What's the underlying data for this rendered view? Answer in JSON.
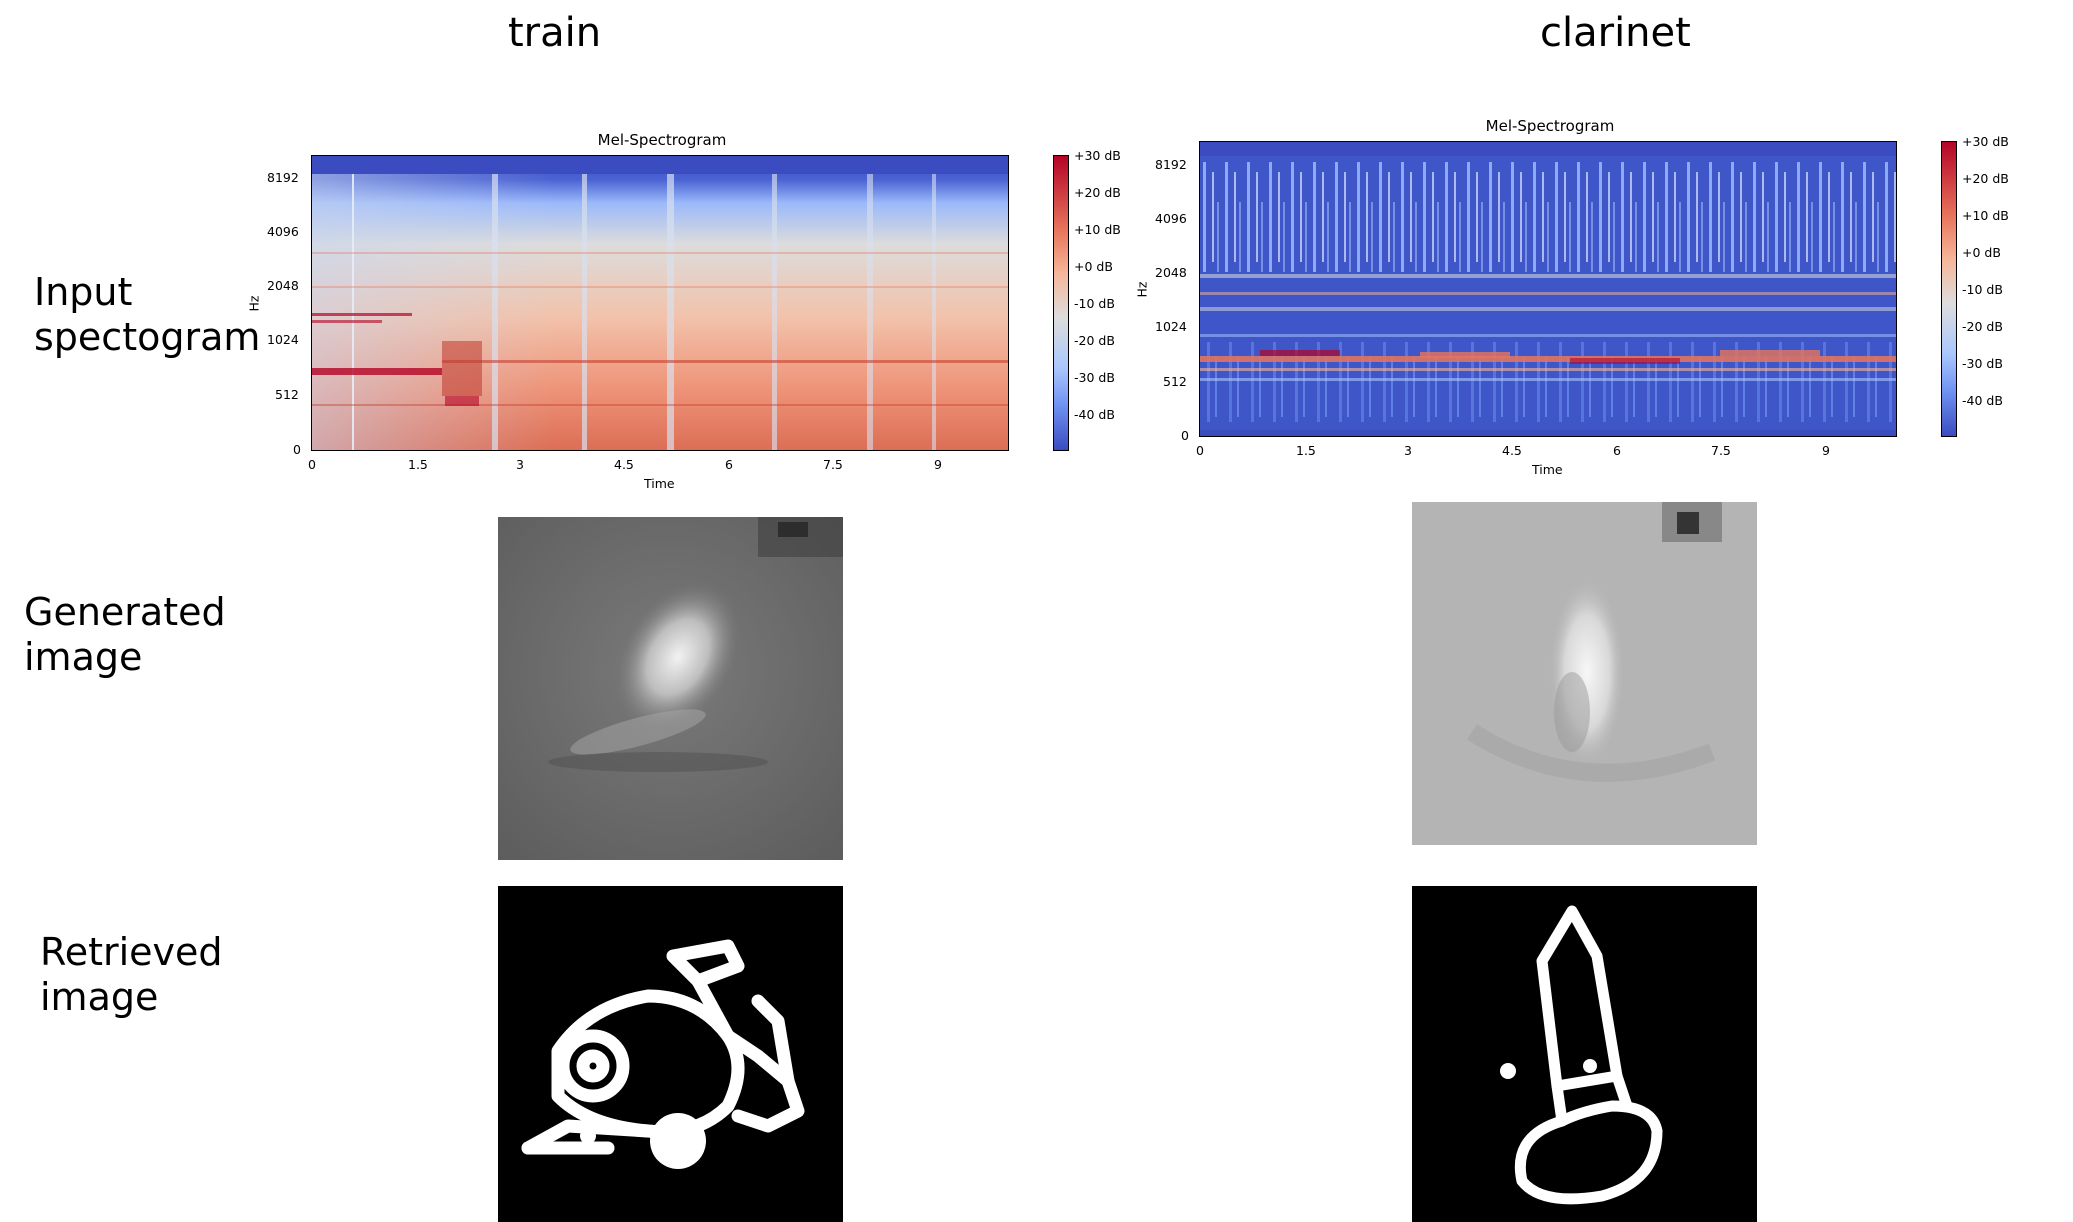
{
  "columns": [
    {
      "label": "train",
      "plot_title": "Mel-Spectrogram",
      "ylabel": "Hz",
      "xlabel": "Time",
      "yticks": [
        "8192",
        "4096",
        "2048",
        "1024",
        "512",
        "0"
      ],
      "xticks": [
        "0",
        "1.5",
        "3",
        "4.5",
        "6",
        "7.5",
        "9"
      ],
      "colorbar_ticks": [
        "+30 dB",
        "+20 dB",
        "+10 dB",
        "+0 dB",
        "-10 dB",
        "-20 dB",
        "-30 dB",
        "-40 dB"
      ]
    },
    {
      "label": "clarinet",
      "plot_title": "Mel-Spectrogram",
      "ylabel": "Hz",
      "xlabel": "Time",
      "yticks": [
        "8192",
        "4096",
        "2048",
        "1024",
        "512",
        "0"
      ],
      "xticks": [
        "0",
        "1.5",
        "3",
        "4.5",
        "6",
        "7.5",
        "9"
      ],
      "colorbar_ticks": [
        "+30 dB",
        "+20 dB",
        "+10 dB",
        "+0 dB",
        "-10 dB",
        "-20 dB",
        "-30 dB",
        "-40 dB"
      ]
    }
  ],
  "rows": {
    "input_label_line1": "Input",
    "input_label_line2": "spectogram",
    "generated_label_line1": "Generated",
    "generated_label_line2": "image",
    "retrieved_label_line1": "Retrieved",
    "retrieved_label_line2": "image"
  },
  "colors": {
    "colormap": [
      "#3b4cc0",
      "#6f91f2",
      "#aac7fd",
      "#dddddd",
      "#f6b69a",
      "#e7745b",
      "#b40426"
    ]
  }
}
